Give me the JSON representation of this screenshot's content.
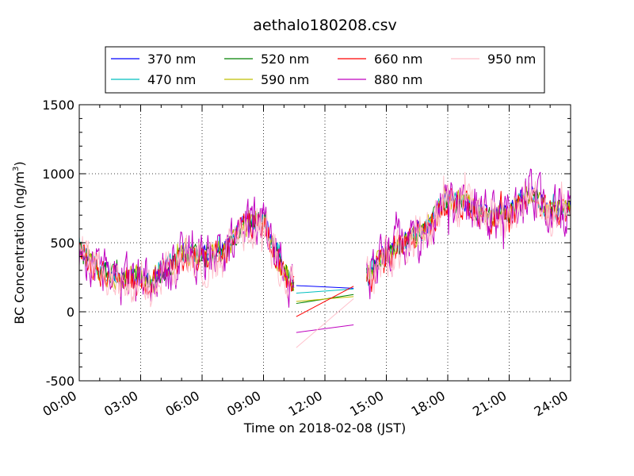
{
  "chart_data": {
    "type": "line",
    "title": "aethalo180208.csv",
    "xlabel": "Time on 2018-02-08 (JST)",
    "ylabel_main": "BC Concentration (ng/m",
    "ylabel_sup": "3",
    "ylabel_end": ")",
    "xlim": [
      0,
      24
    ],
    "ylim": [
      -500,
      1500
    ],
    "yticks": [
      -500,
      0,
      500,
      1000,
      1500
    ],
    "xticks": [
      0,
      3,
      6,
      9,
      12,
      15,
      18,
      21,
      24
    ],
    "xtick_labels": [
      "00:00",
      "03:00",
      "06:00",
      "09:00",
      "12:00",
      "15:00",
      "18:00",
      "21:00",
      "24:00"
    ],
    "grid": true,
    "legend_position": "top",
    "legend_columns": 4,
    "series": [
      {
        "name": "370 nm",
        "color": "#0000ff",
        "offset": 15,
        "noise": 55
      },
      {
        "name": "470 nm",
        "color": "#00bfbf",
        "offset": 5,
        "noise": 60
      },
      {
        "name": "520 nm",
        "color": "#008000",
        "offset": -5,
        "noise": 65
      },
      {
        "name": "590 nm",
        "color": "#bfbf00",
        "offset": 0,
        "noise": 75
      },
      {
        "name": "660 nm",
        "color": "#ff0000",
        "offset": -20,
        "noise": 90
      },
      {
        "name": "880 nm",
        "color": "#bf00bf",
        "offset": -10,
        "noise": 160
      },
      {
        "name": "950 nm",
        "color": "#ffc0cb",
        "offset": -30,
        "noise": 140
      }
    ],
    "trend": {
      "x": [
        0,
        0.5,
        1,
        2,
        3,
        3.5,
        4,
        5,
        6,
        7,
        8,
        9,
        9.5,
        10,
        10.5,
        10.6,
        13.4,
        14,
        15,
        16,
        17,
        18,
        19,
        20,
        21,
        22,
        23,
        24
      ],
      "y": [
        450,
        380,
        310,
        230,
        250,
        200,
        290,
        420,
        400,
        430,
        620,
        680,
        450,
        280,
        210,
        null,
        null,
        250,
        420,
        520,
        610,
        820,
        770,
        690,
        720,
        860,
        720,
        760
      ]
    },
    "gap_segments": [
      {
        "series": "370 nm",
        "x": [
          10.6,
          13.4
        ],
        "y": [
          190,
          170
        ]
      },
      {
        "series": "470 nm",
        "x": [
          10.6,
          13.4
        ],
        "y": [
          135,
          165
        ]
      },
      {
        "series": "520 nm",
        "x": [
          10.6,
          13.4
        ],
        "y": [
          60,
          125
        ]
      },
      {
        "series": "590 nm",
        "x": [
          10.6,
          13.4
        ],
        "y": [
          75,
          110
        ]
      },
      {
        "series": "660 nm",
        "x": [
          10.6,
          13.4
        ],
        "y": [
          -35,
          185
        ]
      },
      {
        "series": "880 nm",
        "x": [
          10.6,
          13.4
        ],
        "y": [
          -150,
          -95
        ]
      },
      {
        "series": "950 nm",
        "x": [
          10.6,
          13.4
        ],
        "y": [
          -260,
          95
        ]
      }
    ]
  }
}
